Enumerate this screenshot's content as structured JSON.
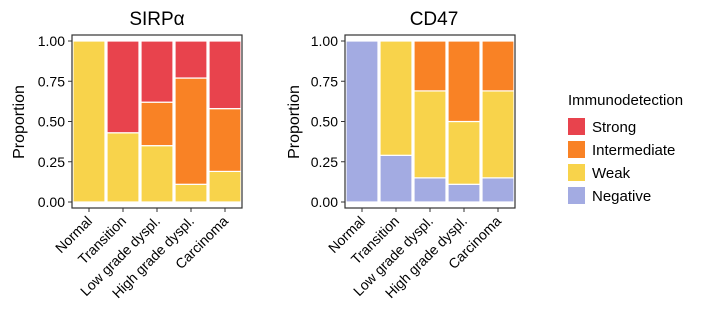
{
  "legend": {
    "title": "Immunodetection",
    "entries": [
      {
        "label": "Strong",
        "color": "#E8434D"
      },
      {
        "label": "Intermediate",
        "color": "#F98225"
      },
      {
        "label": "Weak",
        "color": "#F8D34B"
      },
      {
        "label": "Negative",
        "color": "#A3ABE2"
      }
    ]
  },
  "chart_data": [
    {
      "type": "bar",
      "stacked": true,
      "title": "SIRPα",
      "ylabel": "Proportion",
      "xlabel": "",
      "ylim": [
        0,
        1
      ],
      "yticks": [
        "0.00",
        "0.25",
        "0.50",
        "0.75",
        "1.00"
      ],
      "categories": [
        "Normal",
        "Transition",
        "Low grade dyspl.",
        "High grade dyspl.",
        "Carcinoma"
      ],
      "series": [
        {
          "name": "Negative",
          "values": [
            0,
            0,
            0,
            0,
            0
          ]
        },
        {
          "name": "Weak",
          "values": [
            1.0,
            0.43,
            0.35,
            0.11,
            0.19
          ]
        },
        {
          "name": "Intermediate",
          "values": [
            0,
            0,
            0.27,
            0.66,
            0.39
          ]
        },
        {
          "name": "Strong",
          "values": [
            0,
            0.57,
            0.38,
            0.23,
            0.42
          ]
        }
      ]
    },
    {
      "type": "bar",
      "stacked": true,
      "title": "CD47",
      "ylabel": "Proportion",
      "xlabel": "",
      "ylim": [
        0,
        1
      ],
      "yticks": [
        "0.00",
        "0.25",
        "0.50",
        "0.75",
        "1.00"
      ],
      "categories": [
        "Normal",
        "Transition",
        "Low grade dyspl.",
        "High grade dyspl.",
        "Carcinoma"
      ],
      "series": [
        {
          "name": "Negative",
          "values": [
            1.0,
            0.29,
            0.15,
            0.11,
            0.15
          ]
        },
        {
          "name": "Weak",
          "values": [
            0,
            0.71,
            0.54,
            0.39,
            0.54
          ]
        },
        {
          "name": "Intermediate",
          "values": [
            0,
            0,
            0.31,
            0.5,
            0.31
          ]
        },
        {
          "name": "Strong",
          "values": [
            0,
            0,
            0,
            0,
            0
          ]
        }
      ]
    }
  ]
}
